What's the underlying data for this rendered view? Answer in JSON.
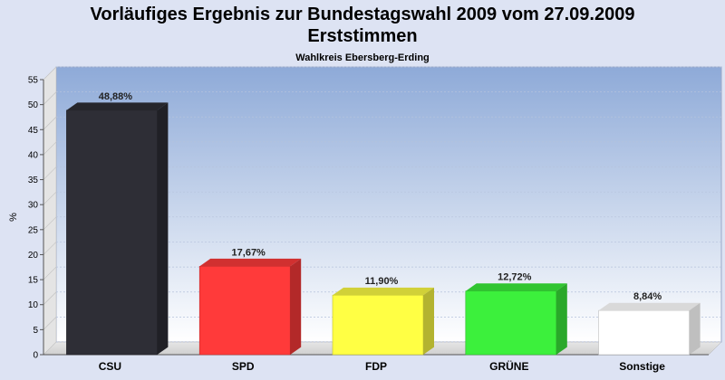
{
  "header": {
    "title": "Vorläufiges Ergebnis zur Bundestagswahl 2009 vom 27.09.2009",
    "title2": "Erststimmen",
    "subtitle": "Wahlkreis Ebersberg-Erding"
  },
  "chart_data": {
    "type": "bar",
    "title": "Vorläufiges Ergebnis zur Bundestagswahl 2009 vom 27.09.2009",
    "subtitle": "Wahlkreis Ebersberg-Erding",
    "xlabel": "",
    "ylabel": "%",
    "ylim": [
      0,
      55
    ],
    "yticks": [
      0,
      5,
      10,
      15,
      20,
      25,
      30,
      35,
      40,
      45,
      50,
      55
    ],
    "grid": true,
    "categories": [
      "CSU",
      "SPD",
      "FDP",
      "GRÜNE",
      "Sonstige"
    ],
    "values": [
      48.88,
      17.67,
      11.9,
      12.72,
      8.84
    ],
    "data_labels": [
      "48,88%",
      "17,67%",
      "11,90%",
      "12,72%",
      "8,84%"
    ],
    "colors": [
      "#2e2e36",
      "#ff3a3a",
      "#ffff44",
      "#3cf03c",
      "#ffffff"
    ]
  }
}
